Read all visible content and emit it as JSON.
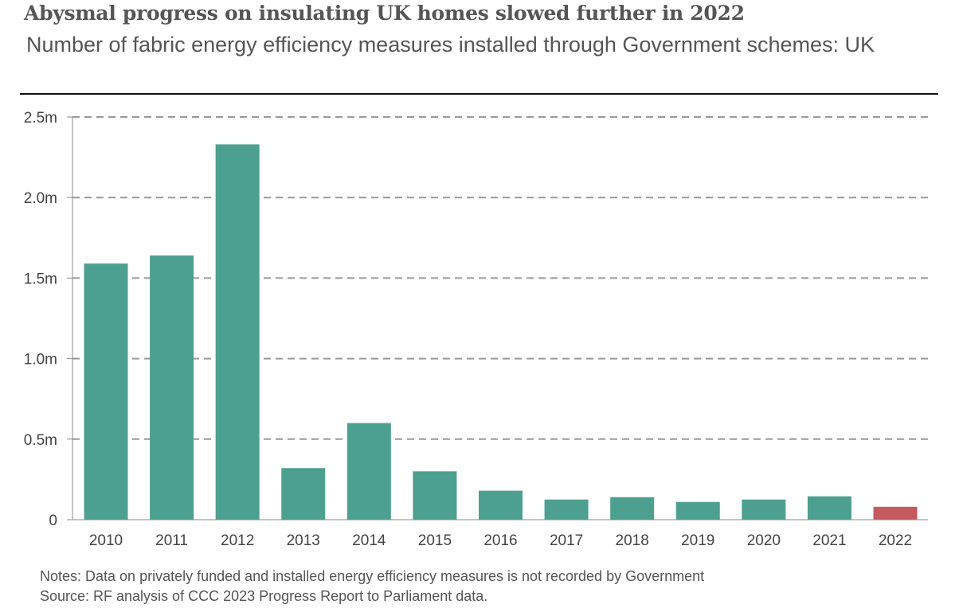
{
  "header": {
    "title": "Abysmal progress on insulating UK homes slowed further in 2022",
    "subtitle": "Number of fabric energy efficiency measures installed through Government schemes: UK"
  },
  "footer": {
    "notes": "Notes: Data on privately funded and installed energy efficiency measures is not recorded by Government",
    "source": "Source: RF analysis of CCC 2023 Progress Report to Parliament data."
  },
  "colors": {
    "bar": "#4DA08F",
    "highlight": "#C4595E",
    "grid": "#999999",
    "axis": "#888888"
  },
  "chart_data": {
    "type": "bar",
    "title": "Abysmal progress on insulating UK homes slowed further in 2022",
    "subtitle": "Number of fabric energy efficiency measures installed through Government schemes: UK",
    "xlabel": "",
    "ylabel": "",
    "categories": [
      "2010",
      "2011",
      "2012",
      "2013",
      "2014",
      "2015",
      "2016",
      "2017",
      "2018",
      "2019",
      "2020",
      "2021",
      "2022"
    ],
    "values": [
      1.59,
      1.64,
      2.33,
      0.32,
      0.6,
      0.3,
      0.18,
      0.125,
      0.14,
      0.11,
      0.125,
      0.145,
      0.08
    ],
    "units": "million measures",
    "highlight_index": 12,
    "ylim": [
      0,
      2.5
    ],
    "yticks": [
      0,
      0.5,
      1.0,
      1.5,
      2.0,
      2.5
    ],
    "ytick_labels": [
      "0",
      "0.5m",
      "1.0m",
      "1.5m",
      "2.0m",
      "2.5m"
    ],
    "grid": "horizontal dashed",
    "legend": "none"
  }
}
